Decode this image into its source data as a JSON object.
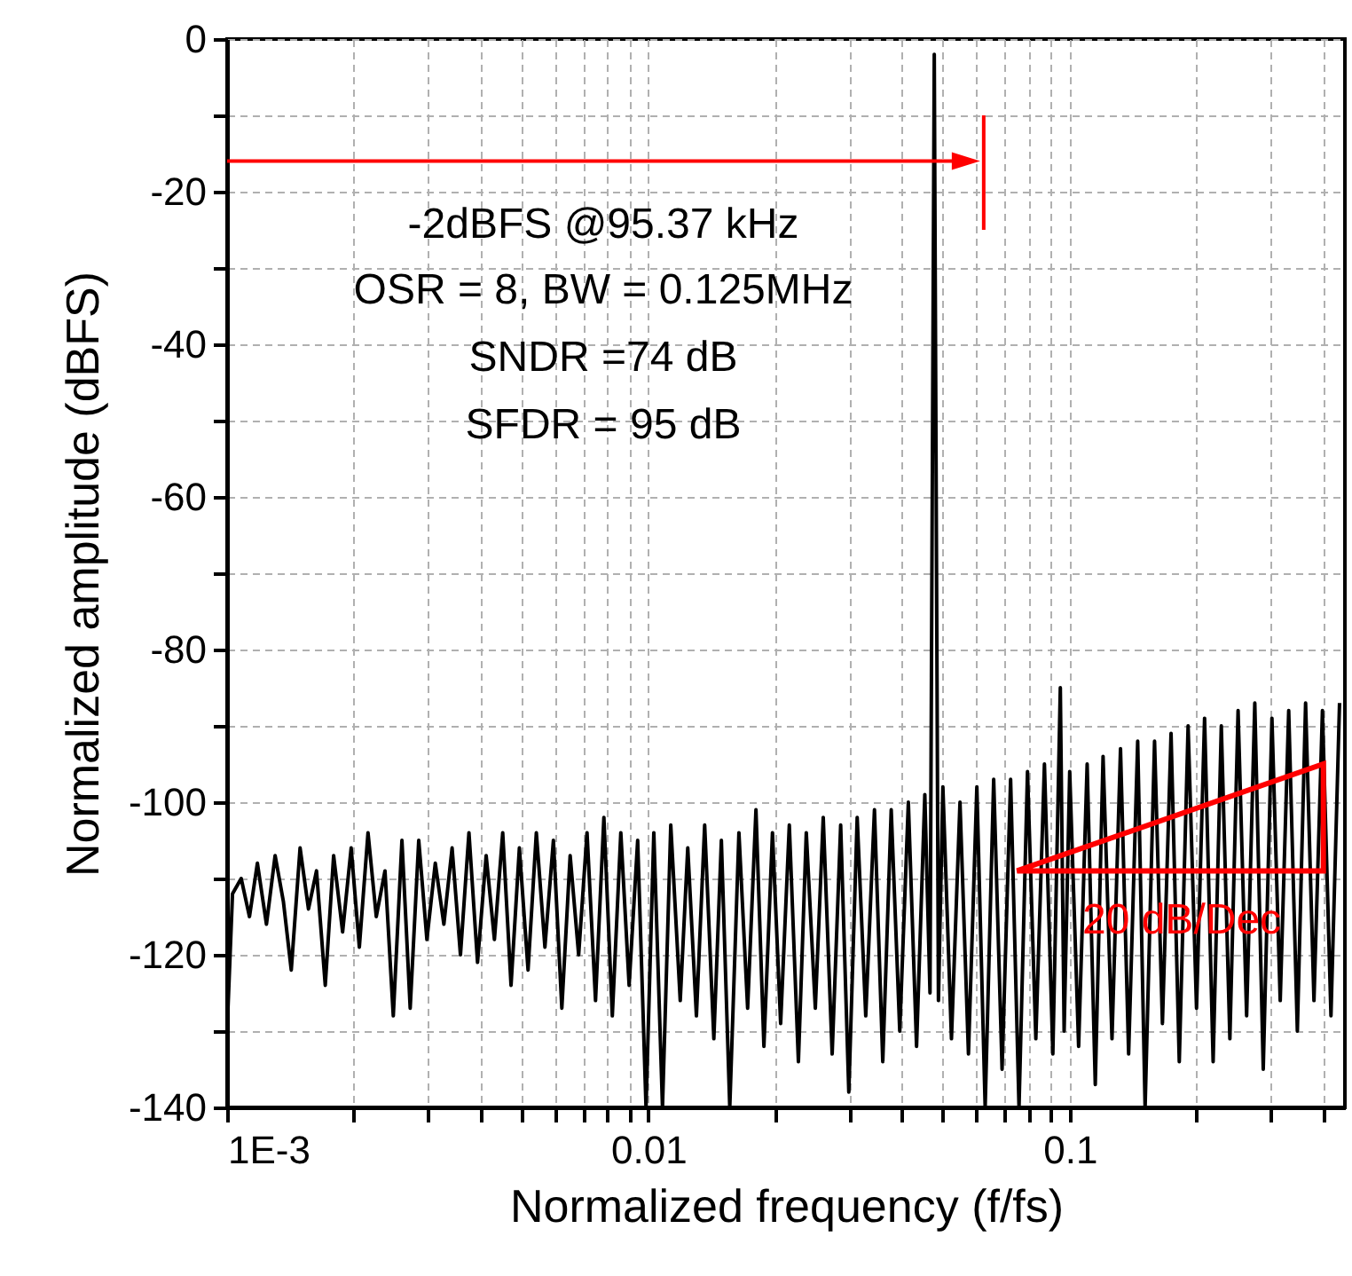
{
  "chart_data": {
    "type": "line",
    "xlabel": "Normalized frequency (f/fs)",
    "ylabel": "Normalized amplitude (dBFS)",
    "annotations": [
      "-2dBFS @95.37 kHz",
      "OSR = 8, BW = 0.125MHz",
      "SNDR =74 dB",
      "SFDR = 95 dB",
      "20 dB/Dec"
    ],
    "log": "x",
    "grid": true,
    "line_style": "solid",
    "marker": "none",
    "xlim": [
      0.001,
      0.45
    ],
    "xticks": [
      {
        "value": 0.001,
        "label": "1E-3"
      },
      {
        "value": 0.002,
        "label": null
      },
      {
        "value": 0.003,
        "label": null
      },
      {
        "value": 0.004,
        "label": null
      },
      {
        "value": 0.005,
        "label": null
      },
      {
        "value": 0.006,
        "label": null
      },
      {
        "value": 0.007,
        "label": null
      },
      {
        "value": 0.008,
        "label": null
      },
      {
        "value": 0.009,
        "label": null
      },
      0.01,
      {
        "value": 0.02,
        "label": null
      },
      {
        "value": 0.03,
        "label": null
      },
      {
        "value": 0.04,
        "label": null
      },
      {
        "value": 0.05,
        "label": null
      },
      {
        "value": 0.06,
        "label": null
      },
      {
        "value": 0.07,
        "label": null
      },
      {
        "value": 0.08,
        "label": null
      },
      {
        "value": 0.09,
        "label": null
      },
      0.1,
      {
        "value": 0.2,
        "label": null
      },
      {
        "value": 0.3,
        "label": null
      },
      {
        "value": 0.4,
        "label": null
      }
    ],
    "ylim": [
      -140,
      0
    ],
    "yticks": [
      -140,
      {
        "value": -130,
        "label": null
      },
      -120,
      {
        "value": -110,
        "label": null
      },
      -100,
      {
        "value": -90,
        "label": null
      },
      -80,
      {
        "value": -70,
        "label": null
      },
      -60,
      {
        "value": -50,
        "label": null
      },
      -40,
      {
        "value": -30,
        "label": null
      },
      -20,
      {
        "value": -10,
        "label": null
      },
      0
    ],
    "series": [
      {
        "color": "#000000",
        "x": [
          0.001,
          0.00103,
          0.00108,
          0.00113,
          0.00118,
          0.00124,
          0.0013,
          0.00136,
          0.00142,
          0.00149,
          0.00156,
          0.00163,
          0.00171,
          0.00179,
          0.00188,
          0.00197,
          0.00206,
          0.00216,
          0.00226,
          0.00237,
          0.00248,
          0.0026,
          0.00272,
          0.00285,
          0.00298,
          0.00312,
          0.00327,
          0.00342,
          0.00358,
          0.00375,
          0.00393,
          0.00412,
          0.00431,
          0.00451,
          0.00472,
          0.00494,
          0.00518,
          0.00542,
          0.00568,
          0.00595,
          0.00623,
          0.00652,
          0.00683,
          0.00715,
          0.00749,
          0.00784,
          0.00821,
          0.0086,
          0.009,
          0.00943,
          0.00987,
          0.0103,
          0.0108,
          0.0113,
          0.0119,
          0.0124,
          0.013,
          0.0136,
          0.0143,
          0.0149,
          0.0156,
          0.0164,
          0.0172,
          0.018,
          0.0188,
          0.0197,
          0.0206,
          0.0216,
          0.0227,
          0.0237,
          0.0249,
          0.026,
          0.0273,
          0.0286,
          0.0299,
          0.0313,
          0.0328,
          0.0344,
          0.036,
          0.0377,
          0.0395,
          0.0414,
          0.0433,
          0.0453,
          0.0466,
          0.0477,
          0.0488,
          0.05,
          0.0524,
          0.0549,
          0.0575,
          0.0602,
          0.063,
          0.066,
          0.0691,
          0.0724,
          0.0758,
          0.0794,
          0.0831,
          0.0871,
          0.0912,
          0.095,
          0.097,
          0.1,
          0.105,
          0.11,
          0.115,
          0.12,
          0.126,
          0.132,
          0.138,
          0.145,
          0.151,
          0.159,
          0.166,
          0.174,
          0.182,
          0.191,
          0.2,
          0.209,
          0.219,
          0.229,
          0.24,
          0.251,
          0.263,
          0.275,
          0.288,
          0.302,
          0.316,
          0.331,
          0.347,
          0.363,
          0.38,
          0.398,
          0.417,
          0.437
        ],
        "values": [
          -130,
          -112,
          -110,
          -115,
          -108,
          -116,
          -107,
          -113,
          -122,
          -106,
          -114,
          -109,
          -124,
          -107,
          -117,
          -106,
          -119,
          -104,
          -115,
          -109,
          -128,
          -105,
          -127,
          -105,
          -118,
          -108,
          -116,
          -106,
          -120,
          -104,
          -121,
          -107,
          -118,
          -104,
          -124,
          -106,
          -122,
          -104,
          -119,
          -105,
          -127,
          -107,
          -120,
          -104,
          -126,
          -102,
          -128,
          -104,
          -124,
          -105,
          -140,
          -104,
          -140,
          -103,
          -126,
          -106,
          -128,
          -103,
          -131,
          -105,
          -140,
          -104,
          -127,
          -101,
          -132,
          -104,
          -129,
          -103,
          -134,
          -104,
          -127,
          -102,
          -133,
          -103,
          -138,
          -102,
          -128,
          -101,
          -134,
          -101,
          -130,
          -100,
          -132,
          -99,
          -125,
          -2,
          -126,
          -98,
          -131,
          -100,
          -133,
          -98,
          -140,
          -97,
          -135,
          -97,
          -140,
          -96,
          -131,
          -95,
          -133,
          -85,
          -130,
          -96,
          -132,
          -95,
          -137,
          -94,
          -131,
          -93,
          -133,
          -92,
          -140,
          -92,
          -129,
          -91,
          -134,
          -90,
          -127,
          -89,
          -134,
          -90,
          -131,
          -88,
          -128,
          -87,
          -135,
          -89,
          -126,
          -88,
          -130,
          -87,
          -126,
          -88,
          -128,
          -87
        ]
      }
    ]
  }
}
